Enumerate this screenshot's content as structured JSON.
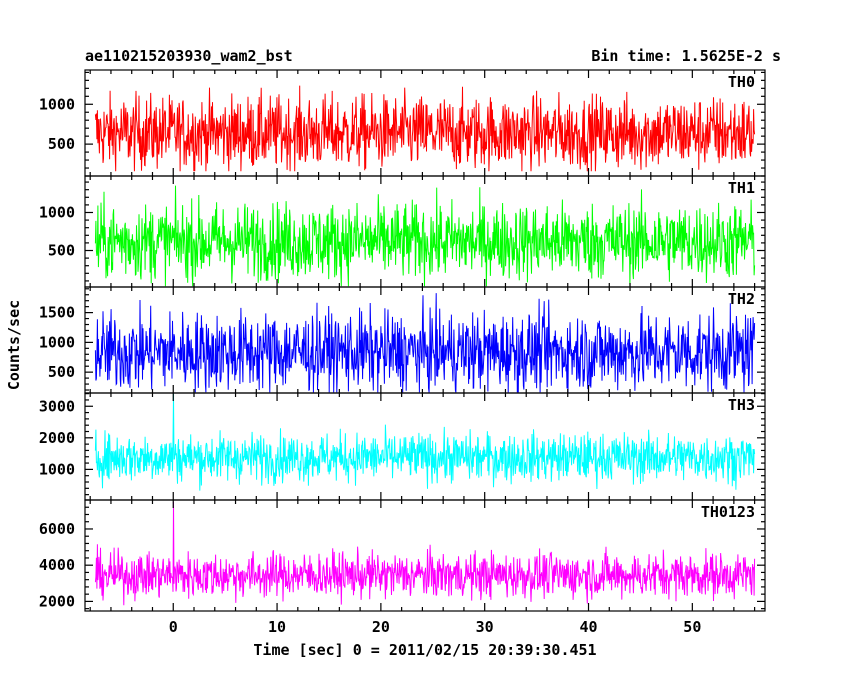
{
  "chart_data": {
    "type": "line",
    "title": "ae110215203930_wam2_bst",
    "subtitle": "Bin time: 1.5625E-2 s",
    "xlabel": "Time [sec] 0 = 2011/02/15 20:39:30.451",
    "ylabel": "Counts/sec",
    "xlim": [
      -8.5,
      57
    ],
    "x_range_data": [
      -7.5,
      56
    ],
    "bin_time": 0.015625,
    "x_ticks": [
      0,
      10,
      20,
      30,
      40,
      50
    ],
    "grid": false,
    "panels": [
      {
        "name": "TH0",
        "color": "#ff0000",
        "ylim": [
          100,
          1430
        ],
        "y_ticks": [
          500,
          1000
        ],
        "mean": 640,
        "noise": 230,
        "min": 160,
        "max": 1430,
        "spike": null
      },
      {
        "name": "TH1",
        "color": "#00ff00",
        "ylim": [
          20,
          1480
        ],
        "y_ticks": [
          500,
          1000
        ],
        "mean": 620,
        "noise": 250,
        "min": 30,
        "max": 1480,
        "spike": null
      },
      {
        "name": "TH2",
        "color": "#0000ff",
        "ylim": [
          150,
          1930
        ],
        "y_ticks": [
          500,
          1000,
          1500
        ],
        "mean": 840,
        "noise": 330,
        "min": 160,
        "max": 1930,
        "spike": null
      },
      {
        "name": "TH3",
        "color": "#00ffff",
        "ylim": [
          30,
          3420
        ],
        "y_ticks": [
          1000,
          2000,
          3000
        ],
        "mean": 1380,
        "noise": 380,
        "min": 60,
        "max": 2850,
        "spike": {
          "x": 0.0,
          "value": 3400
        }
      },
      {
        "name": "TH0123",
        "color": "#ff00ff",
        "ylim": [
          1470,
          7600
        ],
        "y_ticks": [
          2000,
          4000,
          6000
        ],
        "mean": 3450,
        "noise": 620,
        "min": 1500,
        "max": 5600,
        "spike": {
          "x": 0.0,
          "value": 7500
        }
      }
    ]
  }
}
